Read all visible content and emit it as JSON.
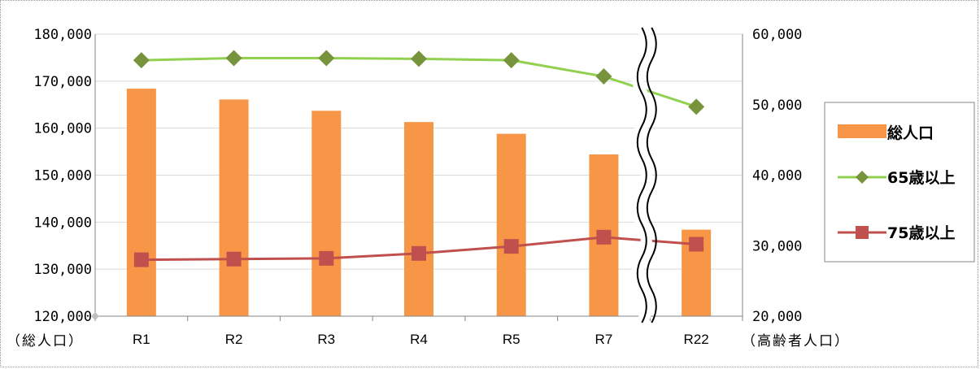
{
  "chart_data": {
    "type": "bar+line",
    "categories": [
      "R1",
      "R2",
      "R3",
      "R4",
      "R5",
      "R7",
      "R22"
    ],
    "axis_break_before": "R22",
    "y_left": {
      "ylim": [
        120000,
        180000
      ],
      "ticks": [
        120000,
        130000,
        140000,
        150000,
        160000,
        170000,
        180000
      ],
      "tick_labels": [
        "120,000",
        "130,000",
        "140,000",
        "150,000",
        "160,000",
        "170,000",
        "180,000"
      ],
      "unit_label": "（総人口）"
    },
    "y_right": {
      "ylim": [
        20000,
        60000
      ],
      "ticks": [
        20000,
        30000,
        40000,
        50000,
        60000
      ],
      "tick_labels": [
        "20,000",
        "30,000",
        "40,000",
        "50,000",
        "60,000"
      ],
      "unit_label": "（高齢者人口）"
    },
    "series": [
      {
        "name": "総人口",
        "type": "bar",
        "axis": "left",
        "color": "#f79646",
        "values": [
          168400,
          166100,
          163700,
          161300,
          158800,
          154400,
          138400
        ]
      },
      {
        "name": "65歳以上",
        "type": "line",
        "axis": "right",
        "color": "#92d050",
        "marker": "diamond",
        "marker_color": "#77933c",
        "values": [
          56300,
          56600,
          56600,
          56500,
          56300,
          54000,
          49700
        ]
      },
      {
        "name": "75歳以上",
        "type": "line",
        "axis": "right",
        "color": "#c0504d",
        "marker": "square",
        "values": [
          28000,
          28100,
          28200,
          28900,
          29900,
          31200,
          30200
        ]
      }
    ],
    "grid": true,
    "legend_position": "right"
  }
}
